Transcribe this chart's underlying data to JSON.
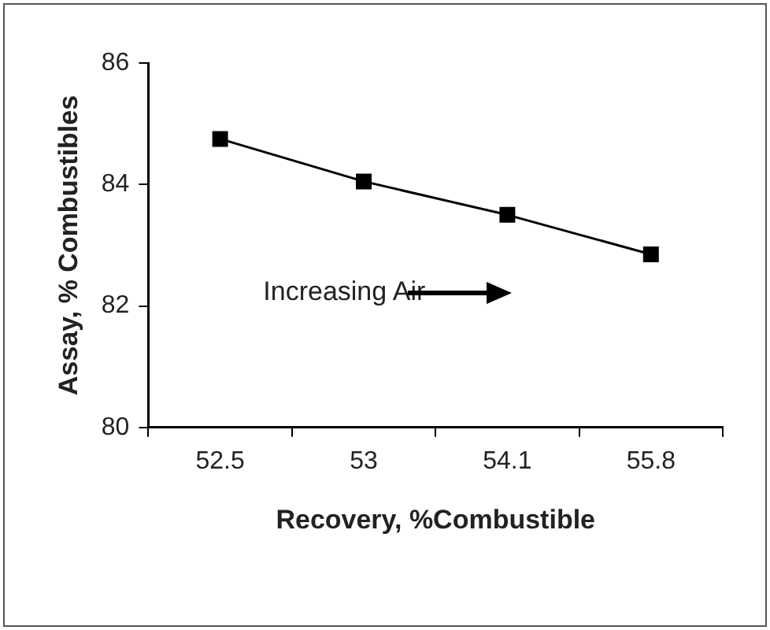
{
  "chart_data": {
    "type": "line",
    "xlabel": "Recovery, %Combustible",
    "ylabel": "Assay, % Combustibles",
    "categories": [
      "52.5",
      "53",
      "54.1",
      "55.8"
    ],
    "series": [
      {
        "color": "#000000",
        "values": [
          84.75,
          84.05,
          83.5,
          82.85
        ]
      }
    ],
    "ylim": [
      80,
      86
    ],
    "yticks": [
      80,
      82,
      84,
      86
    ],
    "grid": false,
    "legend": false,
    "marker": "square",
    "line_style": "solid",
    "annotations": [
      "Increasing Air"
    ]
  }
}
